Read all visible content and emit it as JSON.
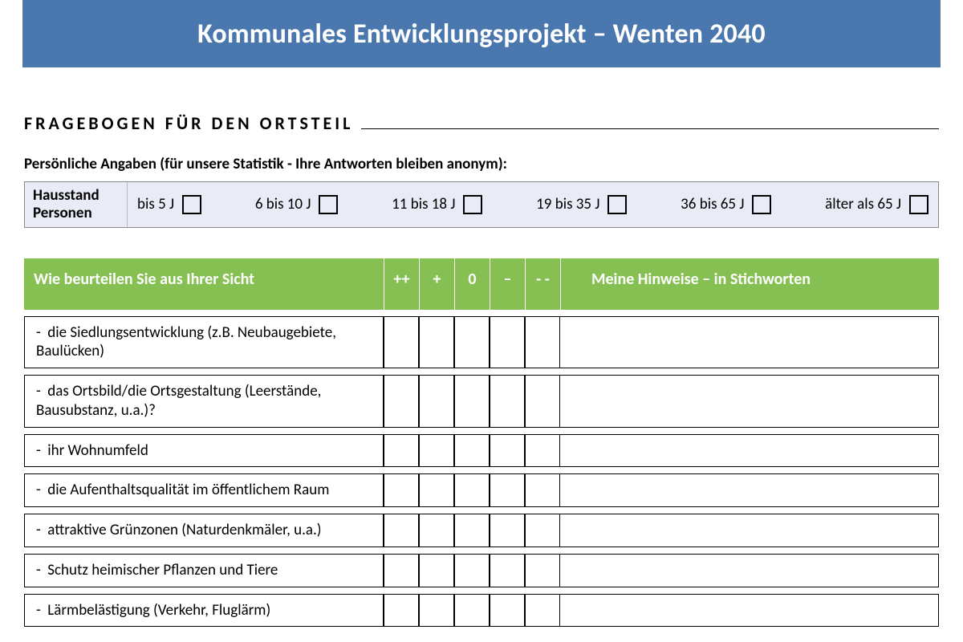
{
  "colors": {
    "banner_bg": "#4a77ae",
    "banner_text": "#ffffff",
    "table_header_bg": "#86c053",
    "table_header_text": "#ffffff",
    "household_bg": "#e9ecf6",
    "page_bg": "#ffffff",
    "text": "#000000"
  },
  "banner": {
    "title": "Kommunales Entwicklungsprojekt – Wenten 2040"
  },
  "section": {
    "title": "FRAGEBOGEN FÜR DEN ORTSTEIL"
  },
  "personal": {
    "intro": "Persönliche Angaben (für unsere Statistik - Ihre Antworten bleiben anonym):",
    "row_label_line1": "Hausstand",
    "row_label_line2": "Personen",
    "options": [
      "bis 5 J",
      "6 bis 10 J",
      "11 bis 18 J",
      "19 bis 35 J",
      "36 bis 65 J",
      "älter als 65 J"
    ]
  },
  "qheader": {
    "question": "Wie beurteilen Sie aus Ihrer Sicht",
    "ratings": [
      "++",
      "+",
      "0",
      "–",
      "- -"
    ],
    "notes": "Meine Hinweise – in Stichworten"
  },
  "questions": [
    {
      "text": "die Siedlungsentwicklung (z.B. Neubaugebiete, Baulücken)",
      "tall": true
    },
    {
      "text": "das Ortsbild/die Ortsgestaltung (Leerstände, Bausubstanz, u.a.)?",
      "tall": true
    },
    {
      "text": "ihr Wohnumfeld",
      "tall": false
    },
    {
      "text": "die Aufenthaltsqualität im öffentlichem Raum",
      "tall": false
    },
    {
      "text": "attraktive Grünzonen (Naturdenkmäler, u.a.)",
      "tall": false
    },
    {
      "text": "Schutz heimischer Pflanzen und Tiere",
      "tall": false
    },
    {
      "text": "Lärmbelästigung (Verkehr, Fluglärm)",
      "tall": false
    }
  ]
}
